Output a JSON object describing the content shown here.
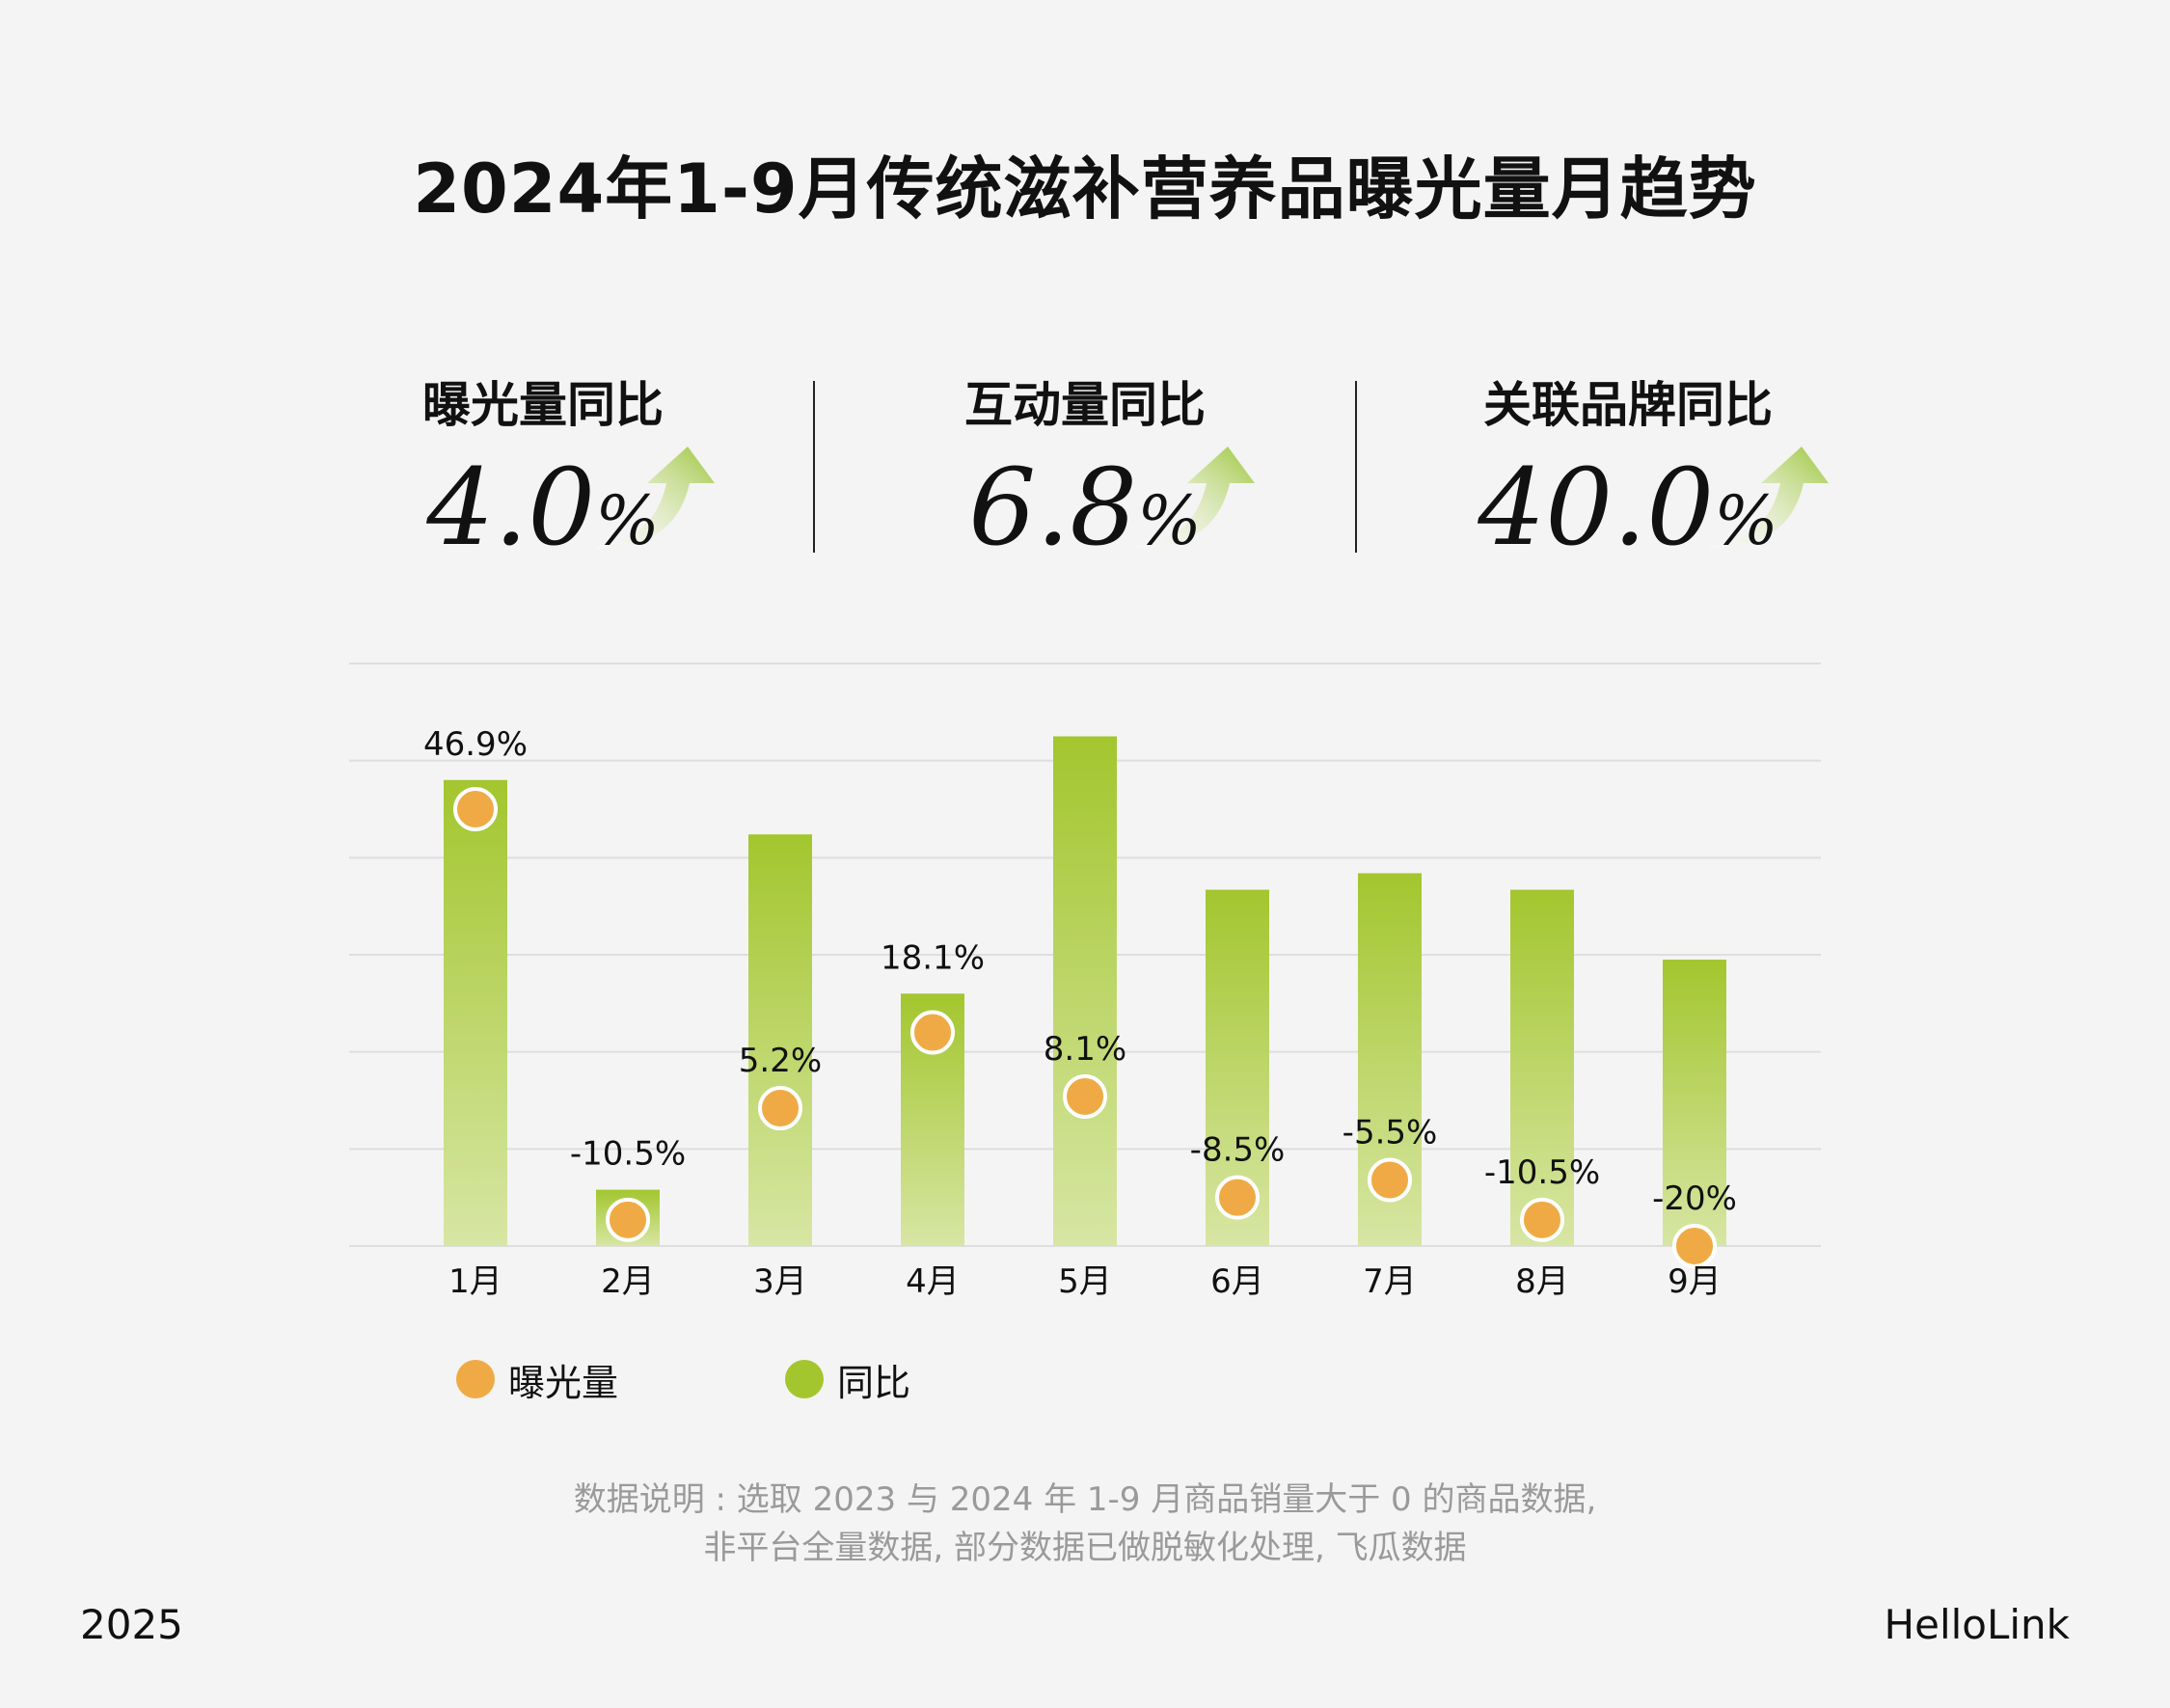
{
  "title": "2024年1-9月传统滋补营养品曝光量月趋势",
  "kpis": [
    {
      "label": "曝光量同比",
      "value": "4.0",
      "unit": "%"
    },
    {
      "label": "互动量同比",
      "value": "6.8",
      "unit": "%"
    },
    {
      "label": "关联品牌同比",
      "value": "40.0",
      "unit": "%"
    }
  ],
  "colors": {
    "bar_top": "#a3c62e",
    "bar_bottom": "#d7e6a4",
    "dot": "#f0aa45",
    "grid": "#dedede",
    "arrow": "#9cc53a"
  },
  "chart_data": {
    "type": "bar",
    "categories": [
      "1月",
      "2月",
      "3月",
      "4月",
      "5月",
      "6月",
      "7月",
      "8月",
      "9月"
    ],
    "ylim": [
      0,
      6
    ],
    "grid": true,
    "legend_placement": "bottom-left",
    "series": [
      {
        "name": "同比",
        "kind": "bar",
        "values": [
          4.8,
          0.58,
          4.24,
          2.6,
          5.25,
          3.67,
          3.84,
          3.67,
          2.95
        ]
      },
      {
        "name": "曝光量",
        "kind": "point",
        "values": [
          4.5,
          0.27,
          1.42,
          2.2,
          1.54,
          0.5,
          0.68,
          0.27,
          0.0
        ]
      }
    ],
    "point_labels": [
      "46.9%",
      "-10.5%",
      "5.2%",
      "18.1%",
      "8.1%",
      "-8.5%",
      "-5.5%",
      "-10.5%",
      "-20%"
    ]
  },
  "legend": [
    {
      "label": "曝光量",
      "color": "#f0aa45"
    },
    {
      "label": "同比",
      "color": "#a3c62e"
    }
  ],
  "note": {
    "line1": "数据说明 : 选取 2023 与 2024 年 1-9 月商品销量大于 0 的商品数据,",
    "line2": "非平台全量数据, 部分数据已做脱敏化处理, 飞瓜数据"
  },
  "footer": {
    "year": "2025",
    "brand": "HelloLink"
  }
}
